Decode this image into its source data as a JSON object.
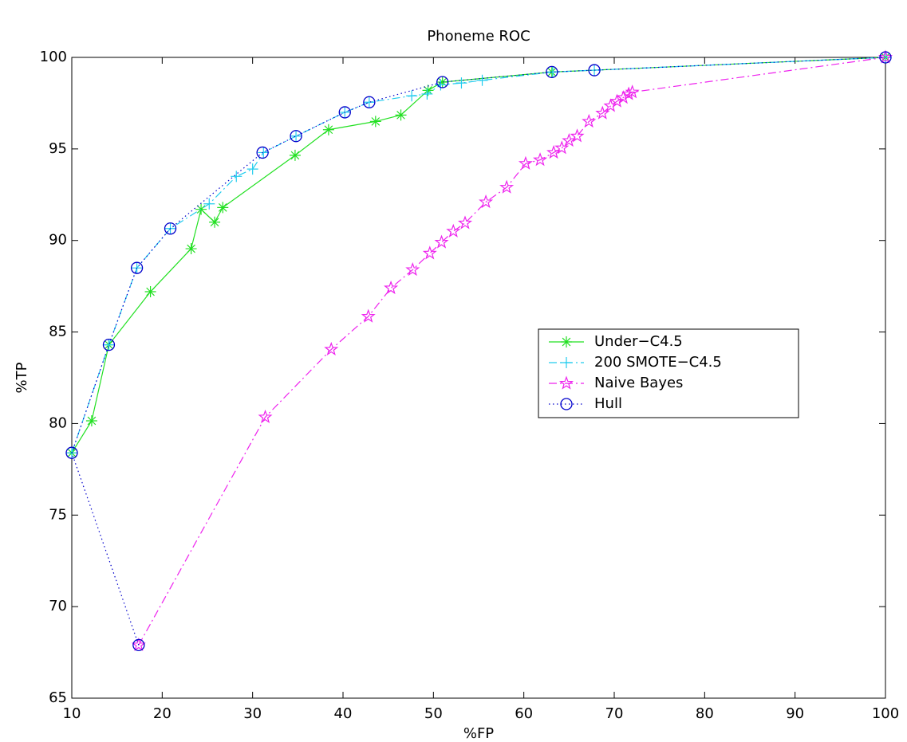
{
  "chart_data": {
    "type": "line",
    "title": "Phoneme ROC",
    "x_label": "%FP",
    "y_label": "%TP",
    "xlim": [
      10,
      100
    ],
    "ylim": [
      65,
      100
    ],
    "xticks": [
      10,
      20,
      30,
      40,
      50,
      60,
      70,
      80,
      90,
      100
    ],
    "yticks": [
      65,
      70,
      75,
      80,
      85,
      90,
      95,
      100
    ],
    "grid": false,
    "legend": "right",
    "series": [
      {
        "name": "Under−C4.5",
        "color": "#22e022",
        "marker": "asterisk",
        "line_style": "solid",
        "x": [
          10,
          12.2,
          14.1,
          18.7,
          23.2,
          24.3,
          25.8,
          26.7,
          34.7,
          38.4,
          43.6,
          46.4,
          49.4,
          51.0,
          63.1,
          100
        ],
        "values": [
          78.4,
          80.15,
          84.3,
          87.2,
          89.55,
          91.7,
          91.0,
          91.8,
          94.65,
          96.05,
          96.5,
          96.85,
          98.2,
          98.65,
          99.2,
          100
        ]
      },
      {
        "name": "200 SMOTE−C4.5",
        "color": "#22ccee",
        "marker": "plus",
        "line_style": "dashdot",
        "x": [
          10,
          14.1,
          17.2,
          20.9,
          25.2,
          28.2,
          30,
          31.2,
          34.8,
          40.2,
          42.9,
          47.6,
          49.3,
          50.8,
          53.1,
          55.4,
          63.2,
          67.8,
          100
        ],
        "values": [
          78.4,
          84.3,
          88.5,
          90.65,
          92.0,
          93.5,
          93.9,
          94.8,
          95.7,
          97.0,
          97.55,
          97.9,
          98.0,
          98.5,
          98.6,
          98.75,
          99.2,
          99.3,
          100
        ]
      },
      {
        "name": "Naive Bayes",
        "color": "#ee22ee",
        "marker": "star",
        "line_style": "dashdot",
        "x": [
          17.4,
          31.4,
          38.7,
          42.8,
          45.3,
          47.7,
          49.6,
          50.9,
          52.2,
          53.5,
          55.8,
          58.1,
          60.2,
          61.8,
          63.3,
          64.2,
          65.0,
          65.9,
          67.2,
          68.7,
          69.6,
          70.3,
          71.0,
          71.6,
          72.0,
          100
        ],
        "values": [
          67.9,
          80.35,
          84.05,
          85.85,
          87.4,
          88.4,
          89.3,
          89.9,
          90.5,
          90.95,
          92.1,
          92.9,
          94.2,
          94.4,
          94.8,
          95.05,
          95.45,
          95.7,
          96.5,
          96.95,
          97.35,
          97.6,
          97.8,
          98.0,
          98.1,
          100
        ]
      },
      {
        "name": "Hull",
        "color": "#0000cc",
        "marker": "circle",
        "line_style": "dotted",
        "x": [
          17.4,
          10,
          14.1,
          17.2,
          20.9,
          31.1,
          34.8,
          40.2,
          42.9,
          51.0,
          63.1,
          67.8,
          100
        ],
        "values": [
          67.9,
          78.4,
          84.3,
          88.5,
          90.65,
          94.8,
          95.7,
          97.0,
          97.55,
          98.65,
          99.2,
          99.3,
          100
        ]
      }
    ]
  }
}
